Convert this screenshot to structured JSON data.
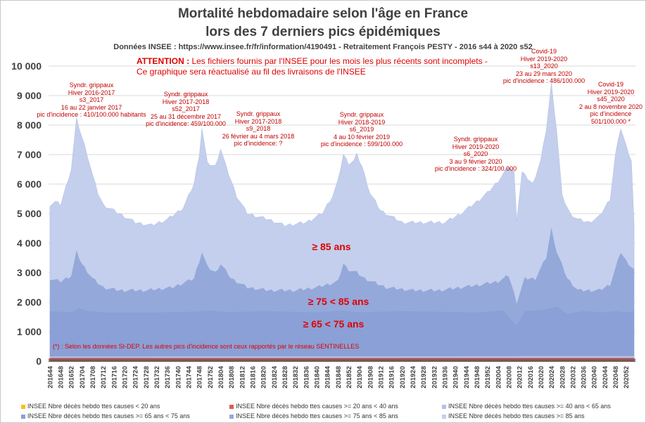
{
  "title_line1": "Mortalité hebdomadaire selon l'âge en France",
  "title_line2": "lors des 7 derniers pics épidémiques",
  "source": "Données INSEE : https://www.insee.fr/fr/information/4190491 - Retraitement François PESTY - 2016 s44 à 2020 s52",
  "warning": {
    "bold": "ATTENTION :",
    "line1": " Les fichiers fournis par l'INSEE pour les mois les plus récents sont incomplets -",
    "line2": "Ce graphique sera réactualisé au fil des livraisons de l'INSEE"
  },
  "footnote": "(*) : Selon les données SI-DEP. Les autres pics d'incidence sont ceux rapportés par le réseau SENTINELLES",
  "band_labels": {
    "b85": "≥ 85 ans",
    "b75": "≥ 75 < 85 ans",
    "b65": "≥ 65 < 75 ans"
  },
  "annotations": [
    {
      "lines": [
        "Syndr. grippaux",
        "Hiver 2016-2017",
        "s3_2017",
        "16 au 22 janvier 2017",
        "pic d'incidence : 410/100.000 habitants"
      ]
    },
    {
      "lines": [
        "Syndr. grippaux",
        "Hiver 2017-2018",
        "s52_2017",
        "25 au 31 décembre 2017",
        "pic d'incidence: 459/100.000"
      ]
    },
    {
      "lines": [
        "Syndr. grippaux",
        "Hiver 2017-2018",
        "s9_2018",
        "26 février au 4 mars 2018",
        "pic d'incidence: ?"
      ]
    },
    {
      "lines": [
        "Syndr. grippaux",
        "Hiver 2018-2019",
        "s6_2019",
        "4 au 10 février 2019",
        "pic d'incidence : 599/100.000"
      ]
    },
    {
      "lines": [
        "Syndr. grippaux",
        "Hiver 2019-2020",
        "s6_2020",
        "3 au 9 février 2020",
        "pic d'incidence : 324/100.000"
      ]
    },
    {
      "lines": [
        "Covid-19",
        "Hiver 2019-2020",
        "s13_2020",
        "23 au 29 mars 2020",
        "pic d'incidence : 486/100.000"
      ]
    },
    {
      "lines": [
        "Covid-19",
        "Hiver 2019-2020",
        "s45_2020",
        "2 au 8 novembre 2020",
        "pic d'incidence",
        "501/100.000 *"
      ]
    }
  ],
  "chart_data": {
    "type": "area",
    "stacked": true,
    "x_start": "201644",
    "x_end": "202052",
    "x_tick_labels": [
      "201644",
      "201648",
      "201652",
      "201704",
      "201708",
      "201712",
      "201716",
      "201720",
      "201724",
      "201728",
      "201732",
      "201736",
      "201740",
      "201744",
      "201748",
      "201752",
      "201804",
      "201808",
      "201812",
      "201816",
      "201820",
      "201824",
      "201828",
      "201832",
      "201836",
      "201840",
      "201844",
      "201848",
      "201852",
      "201904",
      "201908",
      "201912",
      "201916",
      "201920",
      "201924",
      "201928",
      "201932",
      "201936",
      "201940",
      "201944",
      "201948",
      "201952",
      "202004",
      "202008",
      "202012",
      "202016",
      "202020",
      "202024",
      "202028",
      "202032",
      "202036",
      "202040",
      "202044",
      "202048",
      "202052"
    ],
    "ylim": [
      0,
      10000
    ],
    "y_ticks": [
      0,
      1000,
      2000,
      3000,
      4000,
      5000,
      6000,
      7000,
      8000,
      9000,
      10000
    ],
    "y_tick_labels": [
      "0",
      "1 000",
      "2 000",
      "3 000",
      "4 000",
      "5 000",
      "6 000",
      "7 000",
      "8 000",
      "9 000",
      "10 000"
    ],
    "grid": true,
    "legend_position": "bottom",
    "series": [
      {
        "name": "INSEE Nbre décès hebdo ttes causes < 20 ans",
        "color": "#ffc000"
      },
      {
        "name": "INSEE Nbre décès hebdo ttes causes >= 20 ans < 40 ans",
        "color": "#e05c4a"
      },
      {
        "name": "INSEE Nbre décès hebdo ttes causes >= 40 ans < 65 ans",
        "color": "#b3c1e3"
      },
      {
        "name": "INSEE Nbre décès hebdo ttes causes >= 65 ans < 75 ans",
        "color": "#8aa0d6"
      },
      {
        "name": "INSEE Nbre décès hebdo ttes causes >= 75 ans < 85 ans",
        "color": "#94a8da"
      },
      {
        "name": "INSEE Nbre décès hebdo ttes causes >= 85 ans",
        "color": "#c3cfec"
      }
    ],
    "cumulative_keypoints": {
      "lt40": [
        [
          0,
          110
        ],
        [
          60,
          110
        ],
        [
          128,
          110
        ],
        [
          219,
          110
        ]
      ],
      "lt65": [
        [
          0,
          160
        ],
        [
          60,
          165
        ],
        [
          128,
          165
        ],
        [
          219,
          175
        ]
      ],
      "lt75": [
        [
          0,
          1700
        ],
        [
          8,
          1650
        ],
        [
          11,
          1800
        ],
        [
          14,
          1700
        ],
        [
          20,
          1650
        ],
        [
          40,
          1650
        ],
        [
          55,
          1680
        ],
        [
          60,
          1720
        ],
        [
          66,
          1660
        ],
        [
          80,
          1700
        ],
        [
          100,
          1650
        ],
        [
          110,
          1720
        ],
        [
          116,
          1650
        ],
        [
          130,
          1700
        ],
        [
          160,
          1650
        ],
        [
          170,
          1720
        ],
        [
          175,
          1200
        ],
        [
          178,
          1700
        ],
        [
          186,
          1750
        ],
        [
          190,
          1850
        ],
        [
          194,
          1600
        ],
        [
          200,
          1700
        ],
        [
          208,
          1650
        ],
        [
          212,
          1700
        ],
        [
          216,
          1650
        ],
        [
          219,
          1700
        ]
      ],
      "lt85": [
        [
          0,
          2800
        ],
        [
          4,
          2700
        ],
        [
          8,
          2900
        ],
        [
          10,
          3700
        ],
        [
          12,
          3300
        ],
        [
          16,
          2800
        ],
        [
          20,
          2500
        ],
        [
          26,
          2400
        ],
        [
          36,
          2400
        ],
        [
          46,
          2500
        ],
        [
          54,
          2800
        ],
        [
          57,
          3700
        ],
        [
          59,
          3200
        ],
        [
          62,
          3000
        ],
        [
          64,
          3300
        ],
        [
          68,
          2800
        ],
        [
          74,
          2500
        ],
        [
          82,
          2400
        ],
        [
          92,
          2400
        ],
        [
          100,
          2500
        ],
        [
          108,
          2700
        ],
        [
          110,
          3300
        ],
        [
          112,
          3100
        ],
        [
          115,
          3000
        ],
        [
          118,
          2800
        ],
        [
          126,
          2500
        ],
        [
          136,
          2400
        ],
        [
          146,
          2400
        ],
        [
          154,
          2500
        ],
        [
          162,
          2600
        ],
        [
          168,
          2700
        ],
        [
          172,
          2900
        ],
        [
          175,
          2000
        ],
        [
          178,
          2800
        ],
        [
          182,
          2800
        ],
        [
          186,
          3500
        ],
        [
          188,
          4500
        ],
        [
          190,
          3700
        ],
        [
          194,
          2800
        ],
        [
          198,
          2400
        ],
        [
          206,
          2400
        ],
        [
          210,
          2600
        ],
        [
          214,
          3700
        ],
        [
          216,
          3400
        ],
        [
          218,
          3200
        ],
        [
          219,
          3100
        ]
      ],
      "total": [
        [
          0,
          5300
        ],
        [
          2,
          5400
        ],
        [
          4,
          5300
        ],
        [
          6,
          5900
        ],
        [
          8,
          6500
        ],
        [
          10,
          8200
        ],
        [
          12,
          7600
        ],
        [
          14,
          7000
        ],
        [
          16,
          6300
        ],
        [
          18,
          5700
        ],
        [
          20,
          5300
        ],
        [
          26,
          5000
        ],
        [
          32,
          4700
        ],
        [
          38,
          4600
        ],
        [
          44,
          4800
        ],
        [
          50,
          5200
        ],
        [
          54,
          6000
        ],
        [
          56,
          7000
        ],
        [
          57,
          7900
        ],
        [
          59,
          6700
        ],
        [
          62,
          6600
        ],
        [
          64,
          7200
        ],
        [
          66,
          6600
        ],
        [
          70,
          5600
        ],
        [
          74,
          5000
        ],
        [
          82,
          4800
        ],
        [
          88,
          4600
        ],
        [
          96,
          4700
        ],
        [
          102,
          5000
        ],
        [
          106,
          5600
        ],
        [
          108,
          6100
        ],
        [
          110,
          7000
        ],
        [
          112,
          6700
        ],
        [
          114,
          6800
        ],
        [
          115,
          7000
        ],
        [
          117,
          6600
        ],
        [
          120,
          5700
        ],
        [
          124,
          5100
        ],
        [
          132,
          4700
        ],
        [
          140,
          4700
        ],
        [
          148,
          4700
        ],
        [
          154,
          5000
        ],
        [
          160,
          5400
        ],
        [
          164,
          5700
        ],
        [
          168,
          6100
        ],
        [
          172,
          6600
        ],
        [
          174,
          6400
        ],
        [
          175,
          4800
        ],
        [
          177,
          6400
        ],
        [
          179,
          6200
        ],
        [
          181,
          6000
        ],
        [
          184,
          6800
        ],
        [
          186,
          7800
        ],
        [
          188,
          9400
        ],
        [
          190,
          7800
        ],
        [
          192,
          5600
        ],
        [
          195,
          5000
        ],
        [
          198,
          4800
        ],
        [
          202,
          4700
        ],
        [
          206,
          4900
        ],
        [
          210,
          5500
        ],
        [
          212,
          7000
        ],
        [
          214,
          7900
        ],
        [
          216,
          7300
        ],
        [
          218,
          6800
        ],
        [
          219,
          4600
        ]
      ]
    }
  }
}
